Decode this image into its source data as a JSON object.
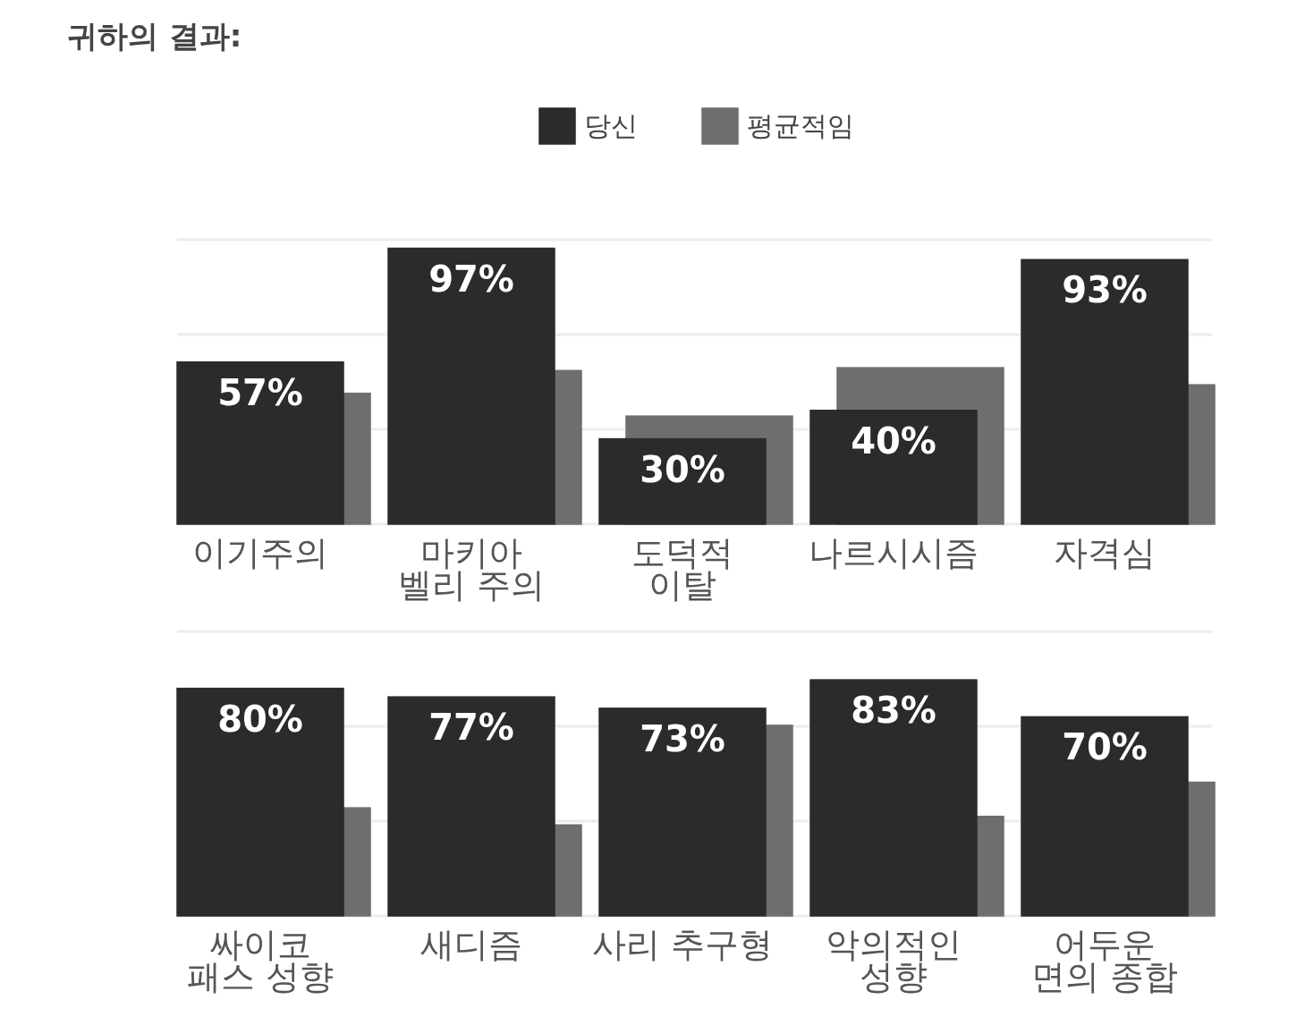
{
  "chart_data": [
    {
      "type": "bar",
      "title": "귀하의 결과:",
      "categories": [
        "이기주의",
        "마키아\n벨리 주의",
        "도덕적\n이탈",
        "나르시시즘",
        "자격심"
      ],
      "series": [
        {
          "name": "당신",
          "color": "#2b2b2b",
          "values": [
            57,
            97,
            30,
            40,
            93
          ],
          "value_labels": [
            "57%",
            "97%",
            "30%",
            "40%",
            "93%"
          ]
        },
        {
          "name": "평균적임",
          "color": "#6e6e6e",
          "values": [
            46,
            54,
            38,
            55,
            49
          ]
        }
      ],
      "ylim": [
        0,
        100
      ],
      "yticks": [
        {
          "value": 0,
          "label": null
        },
        {
          "value": 33.3,
          "label": null
        },
        {
          "value": 66.7,
          "label": null
        },
        {
          "value": 100,
          "label": null
        }
      ],
      "grid": "y",
      "legend": "top",
      "tick_labels": "x"
    },
    {
      "type": "bar",
      "categories": [
        "싸이코\n패스 성향",
        "새디즘",
        "사리 추구형",
        "악의적인\n성향",
        "어두운\n면의 종합"
      ],
      "series": [
        {
          "color": "#2b2b2b",
          "values": [
            80,
            77,
            73,
            83,
            70
          ],
          "value_labels": [
            "80%",
            "77%",
            "73%",
            "83%",
            "70%"
          ]
        },
        {
          "color": "#6e6e6e",
          "values": [
            38,
            32,
            67,
            35,
            47
          ]
        }
      ],
      "ylim": [
        0,
        100
      ],
      "yticks": [
        {
          "value": 0,
          "label": null
        },
        {
          "value": 33.3,
          "label": null
        },
        {
          "value": 66.7,
          "label": null
        },
        {
          "value": 100,
          "label": null
        }
      ],
      "grid": "y",
      "tick_labels": "x"
    }
  ]
}
